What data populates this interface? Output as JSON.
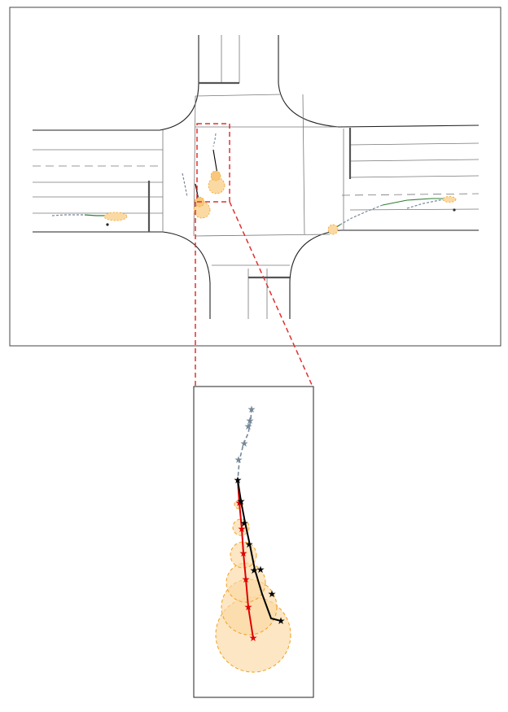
{
  "figure": {
    "panels": [
      "intersection-overview",
      "zoomed-inset"
    ]
  },
  "colors": {
    "road_edge": "#222222",
    "lane_line": "#6b6b6b",
    "stop_line": "#555555",
    "history": "#778899",
    "prediction": "#000000",
    "ground_truth": "#e00000",
    "uncertainty_fill": "#fbd9a3",
    "uncertainty_stroke": "#f0a020",
    "leader": "#e03030",
    "other_agent_path": "#2e7d32"
  },
  "agents": [
    {
      "id": "focus-vehicle",
      "history_marker": "star",
      "prediction_marker": "star",
      "ground_truth_marker": "star"
    },
    {
      "id": "left-queued-vehicle"
    },
    {
      "id": "right-approach-vehicle-1"
    },
    {
      "id": "right-approach-vehicle-2"
    },
    {
      "id": "west-lane-vehicle"
    }
  ]
}
